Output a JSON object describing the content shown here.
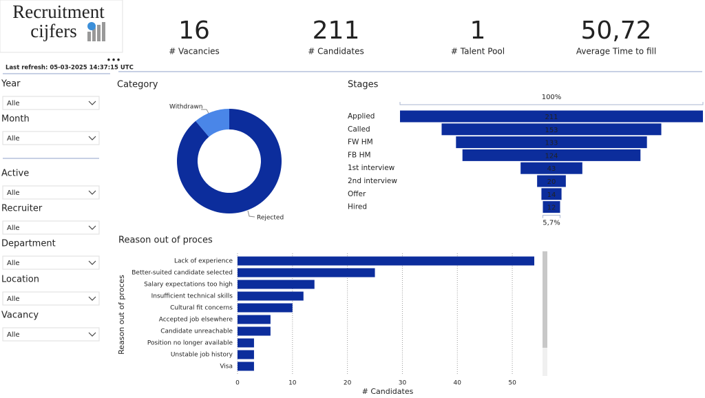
{
  "logo": {
    "line1": "Recruitment",
    "line2": "cijfers"
  },
  "last_refresh": "Last refresh: 05-03-2025 14:37:15 UTC",
  "kpis": [
    {
      "value": "16",
      "label": "# Vacancies"
    },
    {
      "value": "211",
      "label": "# Candidates"
    },
    {
      "value": "1",
      "label": "# Talent Pool"
    },
    {
      "value": "50,72",
      "label": "Average Time to fill"
    }
  ],
  "filters": [
    {
      "label": "Year",
      "value": "Alle"
    },
    {
      "label": "Month",
      "value": "Alle"
    },
    {
      "label": "Active",
      "value": "Alle"
    },
    {
      "label": "Recruiter",
      "value": "Alle"
    },
    {
      "label": "Department",
      "value": "Alle"
    },
    {
      "label": "Location",
      "value": "Alle"
    },
    {
      "label": "Vacancy",
      "value": "Alle"
    }
  ],
  "chart_data": [
    {
      "type": "pie",
      "title": "Category",
      "donut": true,
      "categories": [
        "Withdrawn",
        "Rejected"
      ],
      "values": [
        17,
        136
      ],
      "colors": [
        "#4a86e8",
        "#0c2d9c"
      ]
    },
    {
      "type": "funnel",
      "title": "Stages",
      "categories": [
        "Applied",
        "Called",
        "FW HM",
        "FB HM",
        "1st interview",
        "2nd interview",
        "Offer",
        "Hired"
      ],
      "values": [
        211,
        153,
        133,
        124,
        43,
        20,
        14,
        12
      ],
      "color": "#0c2d9c",
      "top_label": "100%",
      "bottom_label": "5,7%"
    },
    {
      "type": "bar",
      "orientation": "horizontal",
      "title": "Reason out of proces",
      "categories": [
        "Lack of experience",
        "Better-suited candidate selected",
        "Salary expectations too high",
        "Insufficient technical skills",
        "Cultural fit concerns",
        "Accepted job elsewhere",
        "Candidate unreachable",
        "Position no longer available",
        "Unstable job history",
        "Visa"
      ],
      "values": [
        54,
        25,
        14,
        12,
        10,
        6,
        6,
        3,
        3,
        3
      ],
      "color": "#0c2d9c",
      "xlim": [
        0,
        55
      ],
      "xticks": [
        0,
        10,
        20,
        30,
        40,
        50
      ],
      "grid": true,
      "xlabel": "# Candidates",
      "ylabel": "Reason out of proces"
    }
  ]
}
